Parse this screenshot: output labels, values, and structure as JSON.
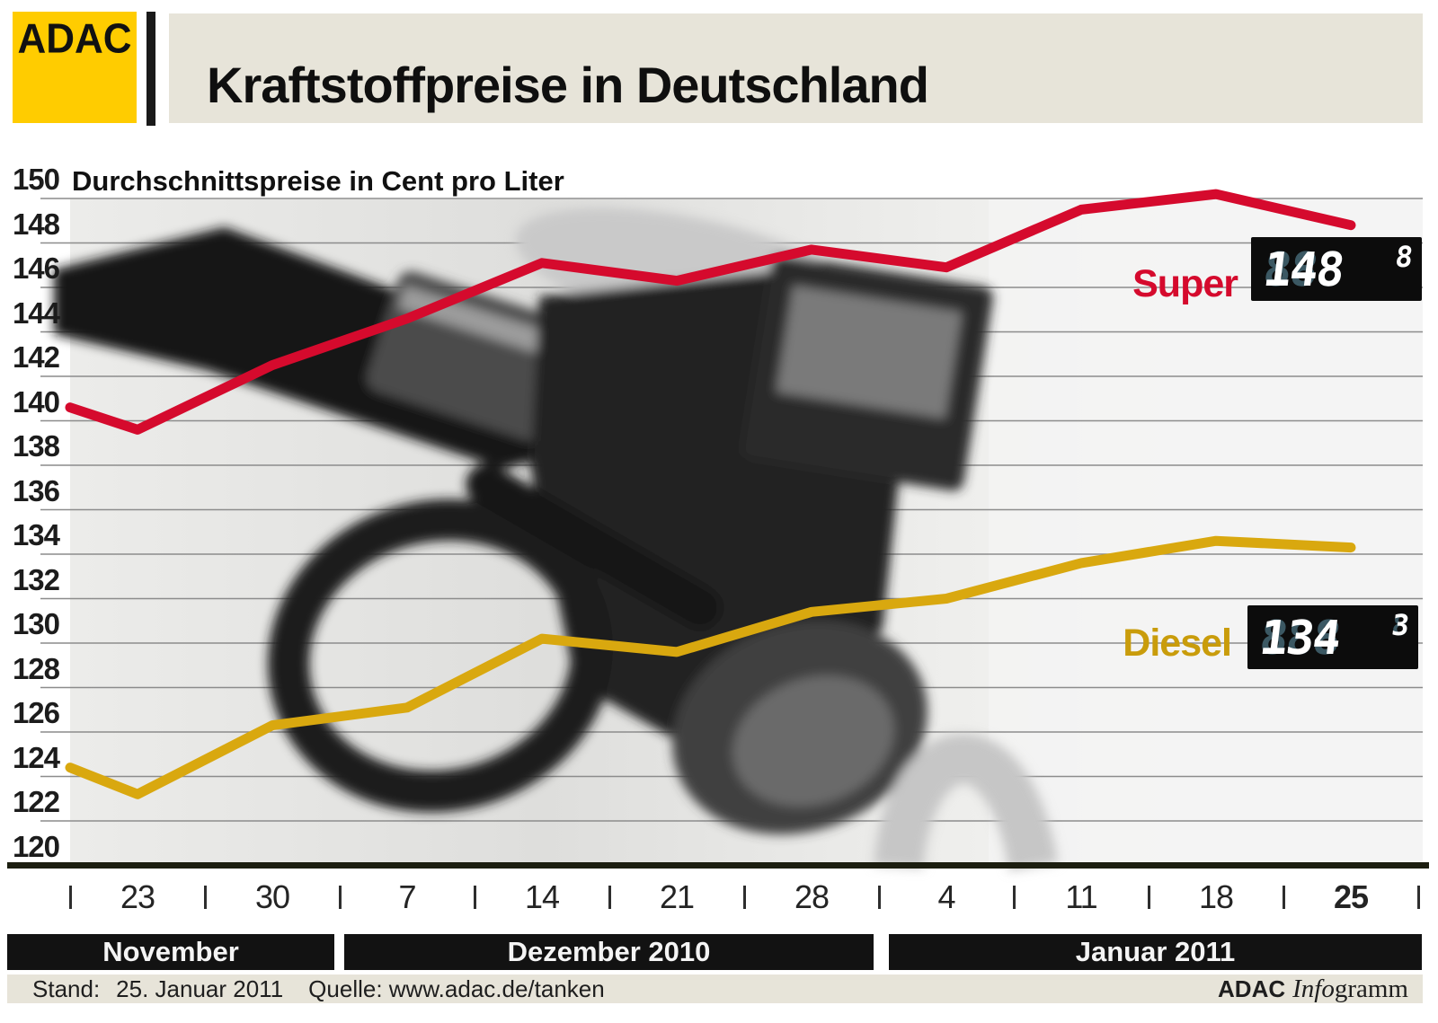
{
  "header": {
    "logo": "ADAC",
    "title": "Kraftstoffpreise in Deutschland"
  },
  "chart": {
    "subtitle": "Durchschnittspreise in Cent pro Liter",
    "y_tick_labels": [
      "150",
      "148",
      "146",
      "144",
      "142",
      "140",
      "138",
      "136",
      "134",
      "132",
      "130",
      "128",
      "126",
      "124",
      "122",
      "120"
    ]
  },
  "chart_data": {
    "type": "line",
    "title": "Kraftstoffpreise in Deutschland",
    "subtitle": "Durchschnittspreise in Cent pro Liter",
    "unit": "Cent pro Liter",
    "ylim": [
      120,
      150
    ],
    "grid": true,
    "x_labels": [
      "23",
      "30",
      "7",
      "14",
      "21",
      "28",
      "4",
      "11",
      "18",
      "25"
    ],
    "months": [
      {
        "label": "November"
      },
      {
        "label": "Dezember 2010"
      },
      {
        "label": "Januar 2011"
      }
    ],
    "series": [
      {
        "name": "Super",
        "color": "#d50a2d",
        "values": [
          140.6,
          139.6,
          142.5,
          144.6,
          147.1,
          146.3,
          147.7,
          146.9,
          149.5,
          150.2,
          148.8
        ],
        "display": {
          "main": "148",
          "sup": "8"
        }
      },
      {
        "name": "Diesel",
        "color": "#d9a80f",
        "values": [
          124.4,
          123.2,
          126.3,
          127.1,
          130.2,
          129.6,
          131.4,
          132.0,
          133.6,
          134.6,
          134.3
        ],
        "display": {
          "main": "134",
          "sup": "3"
        }
      }
    ]
  },
  "lcd": {
    "ghost_main": "888",
    "ghost_sup": "8"
  },
  "footer": {
    "stand_label": "Stand:",
    "stand_value": "25. Januar 2011",
    "source": "Quelle: www.adac.de/tanken",
    "credit_adac": "ADAC",
    "credit_info": "Info",
    "credit_gramm": "gramm"
  },
  "colors": {
    "adac_yellow": "#ffcc00",
    "super_red": "#d50a2d",
    "diesel_gold": "#d9a80f",
    "band_beige": "#e7e4d9",
    "month_band_black": "#121212",
    "lcd_ghost": "#3b5863",
    "axis_dark": "#1c1e10",
    "grid_gray": "#8c8c8c"
  }
}
